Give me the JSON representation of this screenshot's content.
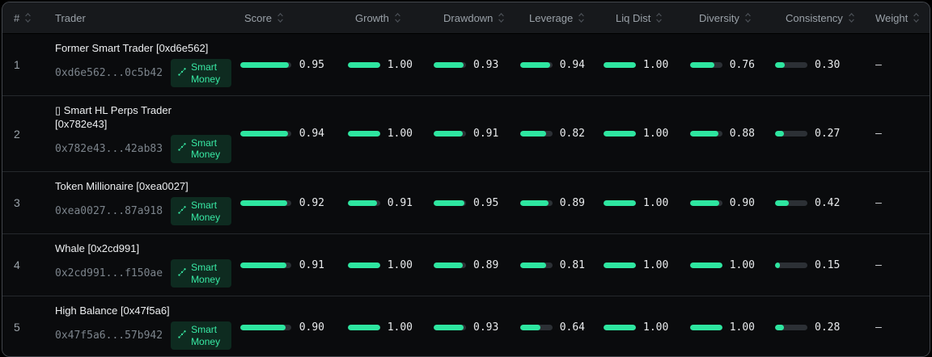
{
  "table": {
    "columns": [
      {
        "label": "#",
        "sortable": true
      },
      {
        "label": "Trader",
        "sortable": false
      },
      {
        "label": "Score",
        "sortable": true
      },
      {
        "label": "Growth",
        "sortable": true
      },
      {
        "label": "Drawdown",
        "sortable": true
      },
      {
        "label": "Leverage",
        "sortable": true
      },
      {
        "label": "Liq Dist",
        "sortable": true
      },
      {
        "label": "Diversity",
        "sortable": true
      },
      {
        "label": "Consistency",
        "sortable": true
      },
      {
        "label": "Weight",
        "sortable": true
      }
    ],
    "rows": [
      {
        "rank": "1",
        "name": "Former Smart Trader [0xd6e562]",
        "address": "0xd6e562...0c5b42",
        "badge": "Smart Money",
        "score": "0.95",
        "growth": "1.00",
        "drawdown": "0.93",
        "leverage": "0.94",
        "liq_dist": "1.00",
        "diversity": "0.76",
        "consistency": "0.30",
        "weight": "—"
      },
      {
        "rank": "2",
        "name": "▯ Smart HL Perps Trader [0x782e43]",
        "address": "0x782e43...42ab83",
        "badge": "Smart Money",
        "score": "0.94",
        "growth": "1.00",
        "drawdown": "0.91",
        "leverage": "0.82",
        "liq_dist": "1.00",
        "diversity": "0.88",
        "consistency": "0.27",
        "weight": "—"
      },
      {
        "rank": "3",
        "name": "Token Millionaire [0xea0027]",
        "address": "0xea0027...87a918",
        "badge": "Smart Money",
        "score": "0.92",
        "growth": "0.91",
        "drawdown": "0.95",
        "leverage": "0.89",
        "liq_dist": "1.00",
        "diversity": "0.90",
        "consistency": "0.42",
        "weight": "—"
      },
      {
        "rank": "4",
        "name": "Whale [0x2cd991]",
        "address": "0x2cd991...f150ae",
        "badge": "Smart Money",
        "score": "0.91",
        "growth": "1.00",
        "drawdown": "0.89",
        "leverage": "0.81",
        "liq_dist": "1.00",
        "diversity": "1.00",
        "consistency": "0.15",
        "weight": "—"
      },
      {
        "rank": "5",
        "name": "High Balance [0x47f5a6]",
        "address": "0x47f5a6...57b942",
        "badge": "Smart Money",
        "score": "0.90",
        "growth": "1.00",
        "drawdown": "0.93",
        "leverage": "0.64",
        "liq_dist": "1.00",
        "diversity": "1.00",
        "consistency": "0.28",
        "weight": "—"
      }
    ],
    "colors": {
      "bar_fill": "#2ee6a0",
      "bar_track": "#2c3035",
      "badge_bg": "#0e2b20",
      "badge_text": "#38e9a4",
      "header_bg": "#17191c",
      "row_bg": "#0a0b0d"
    }
  }
}
